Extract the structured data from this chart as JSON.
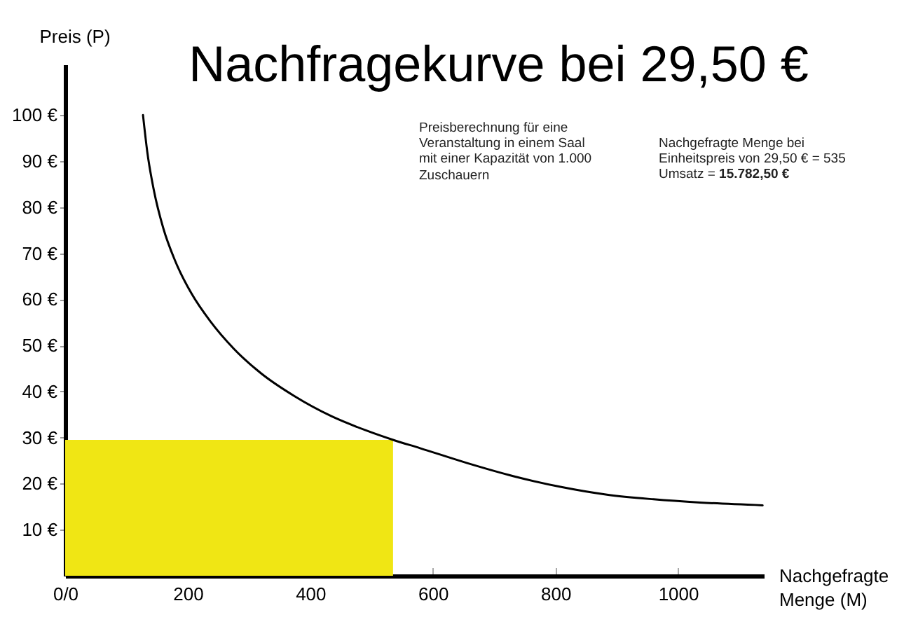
{
  "chart_data": {
    "type": "line",
    "title": "Nachfragekurve bei 29,50 €",
    "xlabel": "Nachgefragte Menge (M)",
    "ylabel": "Preis (P)",
    "annotations": [
      "Preisberechnung für eine Veranstaltung in einem Saal mit einer Kapazität von 1.000 Zuschauern",
      "Nachgefragte Menge bei Einheitspreis von 29,50 € = 535 Umsatz =",
      "15.782,50 €"
    ],
    "xlim": [
      0,
      1140
    ],
    "ylim": [
      0,
      111
    ],
    "xticks": [
      {
        "value": 0,
        "label": "0/0"
      },
      200,
      400,
      600,
      800,
      1000
    ],
    "yticks": [
      {
        "value": 10,
        "label": "10 €"
      },
      {
        "value": 20,
        "label": "20 €"
      },
      {
        "value": 30,
        "label": "30 €"
      },
      {
        "value": 40,
        "label": "40 €"
      },
      {
        "value": 50,
        "label": "50 €"
      },
      {
        "value": 60,
        "label": "60 €"
      },
      {
        "value": 70,
        "label": "70 €"
      },
      {
        "value": 80,
        "label": "80 €"
      },
      {
        "value": 90,
        "label": "90 €"
      },
      {
        "value": 100,
        "label": "100 €"
      }
    ],
    "grid": false,
    "series": [
      {
        "type": "area",
        "color": "#f0e614",
        "x": [
          0,
          535
        ],
        "values": [
          29.5,
          29.5
        ]
      },
      {
        "color": "#000000",
        "x": [
          127,
          134,
          145,
          160,
          179,
          206,
          237,
          275,
          320,
          374,
          435,
          490,
          535,
          579,
          655,
          732,
          808,
          884,
          960,
          1036,
          1138
        ],
        "values": [
          100,
          92,
          83.5,
          75.5,
          68.5,
          61.3,
          55.2,
          49.3,
          43.9,
          39,
          34.6,
          31.6,
          29.5,
          27.7,
          24.5,
          21.6,
          19.3,
          17.6,
          16.6,
          15.9,
          15.3
        ]
      }
    ]
  }
}
